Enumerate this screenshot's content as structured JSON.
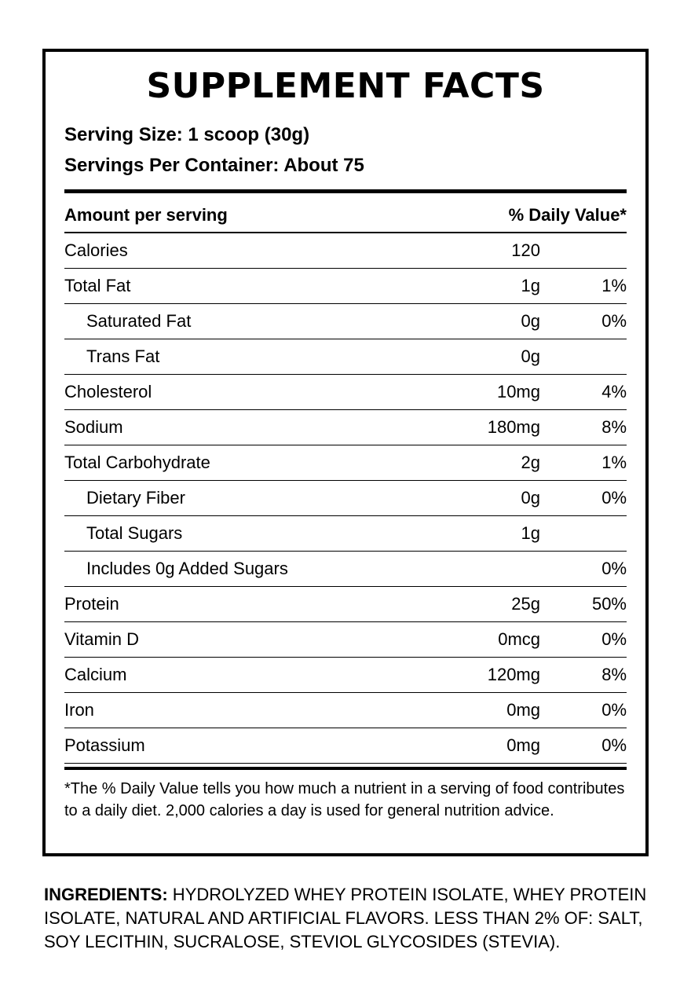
{
  "title": "SUPPLEMENT FACTS",
  "serving_size": "Serving Size: 1 scoop (30g)",
  "servings_per_container": "Servings Per Container: About 75",
  "header": {
    "amount_label": "Amount per serving",
    "dv_label": "% Daily Value*"
  },
  "rows": [
    {
      "label": "Calories",
      "amount": "120",
      "dv": "",
      "indent": false
    },
    {
      "label": "Total Fat",
      "amount": "1g",
      "dv": "1%",
      "indent": false
    },
    {
      "label": "Saturated Fat",
      "amount": "0g",
      "dv": "0%",
      "indent": true
    },
    {
      "label": "Trans Fat",
      "amount": "0g",
      "dv": "",
      "indent": true
    },
    {
      "label": "Cholesterol",
      "amount": "10mg",
      "dv": "4%",
      "indent": false
    },
    {
      "label": "Sodium",
      "amount": "180mg",
      "dv": "8%",
      "indent": false
    },
    {
      "label": "Total Carbohydrate",
      "amount": "2g",
      "dv": "1%",
      "indent": false
    },
    {
      "label": "Dietary Fiber",
      "amount": "0g",
      "dv": "0%",
      "indent": true
    },
    {
      "label": "Total Sugars",
      "amount": "1g",
      "dv": "",
      "indent": true
    },
    {
      "label": "Includes 0g Added Sugars",
      "amount": "",
      "dv": "0%",
      "indent": true
    },
    {
      "label": "Protein",
      "amount": "25g",
      "dv": "50%",
      "indent": false
    },
    {
      "label": "Vitamin D",
      "amount": "0mcg",
      "dv": "0%",
      "indent": false
    },
    {
      "label": "Calcium",
      "amount": "120mg",
      "dv": "8%",
      "indent": false
    },
    {
      "label": "Iron",
      "amount": "0mg",
      "dv": "0%",
      "indent": false
    },
    {
      "label": "Potassium",
      "amount": "0mg",
      "dv": "0%",
      "indent": false
    }
  ],
  "footnote": "*The % Daily Value tells you how much a nutrient in a serving of food contributes to a daily diet. 2,000 calories a day is used for general nutrition advice.",
  "ingredients": {
    "label": "INGREDIENTS:",
    "text": " HYDROLYZED WHEY PROTEIN ISOLATE, WHEY PROTEIN ISOLATE, NATURAL AND ARTIFICIAL FLAVORS. LESS THAN 2% OF: SALT, SOY LECITHIN, SUCRALOSE, STEVIOL GLYCOSIDES (STEVIA)."
  }
}
